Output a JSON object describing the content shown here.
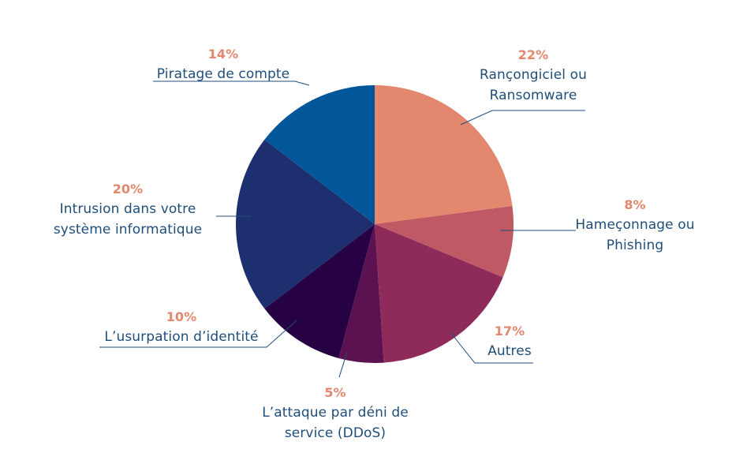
{
  "chart_data": {
    "type": "pie",
    "title": "",
    "start_angle_deg": 0,
    "direction": "clockwise",
    "slices": [
      {
        "label": "Rançongiciel ou\nRansomware",
        "value": 22,
        "display": "22%",
        "color": "#e3876e"
      },
      {
        "label": "Hameçonnage ou\nPhishing",
        "value": 8,
        "display": "8%",
        "color": "#bf5a65"
      },
      {
        "label": "Autres",
        "value": 17,
        "display": "17%",
        "color": "#8e2b5b"
      },
      {
        "label": "L’attaque par déni de\nservice (DDoS)",
        "value": 5,
        "display": "5%",
        "color": "#5c1150"
      },
      {
        "label": "L’usurpation d’identité",
        "value": 10,
        "display": "10%",
        "color": "#260244"
      },
      {
        "label": "Intrusion dans votre\nsystème informatique",
        "value": 20,
        "display": "20%",
        "color": "#1d2f6e"
      },
      {
        "label": "Piratage de compte",
        "value": 14,
        "display": "14%",
        "color": "#02579b"
      }
    ],
    "legend": "none"
  },
  "colors": {
    "label_text": "#1f4e79",
    "percent_text": "#e3876e",
    "leader_line": "#1f4e79"
  }
}
